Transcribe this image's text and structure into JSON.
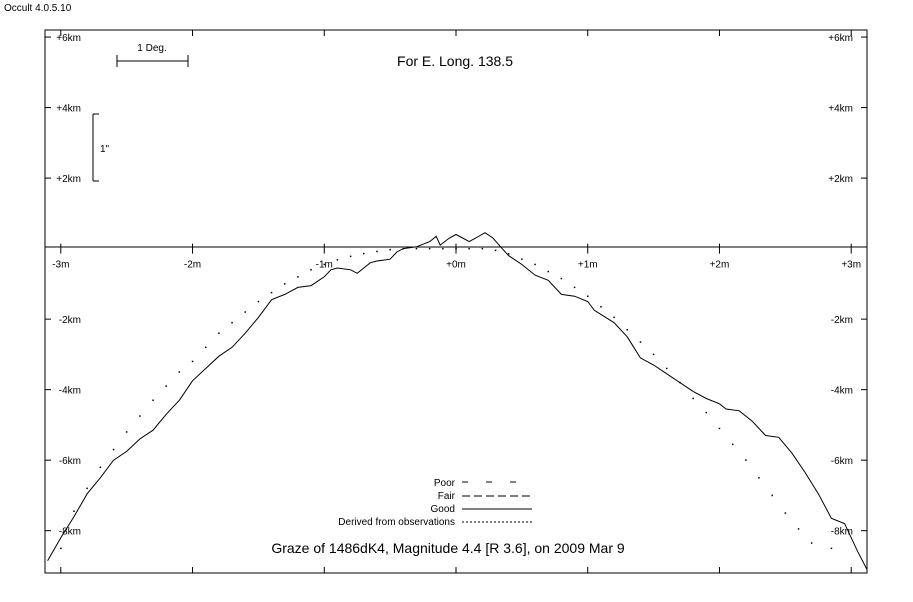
{
  "app_version": "Occult 4.0.5.10",
  "chart_data": {
    "type": "line",
    "title": "For E. Long. 138.5",
    "subtitle": "Graze of  1486dK4,  Magnitude 4.4 [R 3.6],  on 2009 Mar  9",
    "xlim": [
      -3.12,
      3.12
    ],
    "ylim": [
      -9.2,
      6.2
    ],
    "x_ticks": [
      {
        "value": -3,
        "label": "-3m"
      },
      {
        "value": -2,
        "label": "-2m"
      },
      {
        "value": -1,
        "label": "-1m"
      },
      {
        "value": 0,
        "label": "+0m"
      },
      {
        "value": 1,
        "label": "+1m"
      },
      {
        "value": 2,
        "label": "+2m"
      },
      {
        "value": 3,
        "label": "+3m"
      }
    ],
    "y_ticks": [
      {
        "value": 6,
        "label": "+6km"
      },
      {
        "value": 4,
        "label": "+4km"
      },
      {
        "value": 2,
        "label": "+2km"
      },
      {
        "value": -2,
        "label": "-2km"
      },
      {
        "value": -4,
        "label": "-4km"
      },
      {
        "value": -6,
        "label": "-6km"
      },
      {
        "value": -8,
        "label": "-8km"
      }
    ],
    "scale_bars": {
      "degree_label": "1 Deg.",
      "arcsec_label": "1\""
    },
    "legend": {
      "placement": "bottom-center",
      "entries": [
        {
          "label": "Poor",
          "style": "dash-sparse"
        },
        {
          "label": "Fair",
          "style": "dashed"
        },
        {
          "label": "Good",
          "style": "solid"
        },
        {
          "label": "Derived from observations",
          "style": "dotted"
        }
      ]
    },
    "series": [
      {
        "label": "Good",
        "style": "solid",
        "points": [
          [
            -3.1,
            -8.85
          ],
          [
            -3.0,
            -8.2
          ],
          [
            -2.9,
            -7.6
          ],
          [
            -2.8,
            -6.95
          ],
          [
            -2.7,
            -6.5
          ],
          [
            -2.6,
            -6.0
          ],
          [
            -2.5,
            -5.75
          ],
          [
            -2.4,
            -5.4
          ],
          [
            -2.3,
            -5.15
          ],
          [
            -2.2,
            -4.7
          ],
          [
            -2.1,
            -4.3
          ],
          [
            -2.0,
            -3.75
          ],
          [
            -1.9,
            -3.4
          ],
          [
            -1.8,
            -3.05
          ],
          [
            -1.7,
            -2.8
          ],
          [
            -1.6,
            -2.4
          ],
          [
            -1.5,
            -1.95
          ],
          [
            -1.4,
            -1.45
          ],
          [
            -1.3,
            -1.3
          ],
          [
            -1.2,
            -1.1
          ],
          [
            -1.1,
            -1.05
          ],
          [
            -1.0,
            -0.8
          ],
          [
            -0.95,
            -0.6
          ],
          [
            -0.9,
            -0.55
          ],
          [
            -0.8,
            -0.6
          ],
          [
            -0.75,
            -0.7
          ],
          [
            -0.7,
            -0.55
          ],
          [
            -0.65,
            -0.4
          ],
          [
            -0.6,
            -0.35
          ],
          [
            -0.5,
            -0.3
          ],
          [
            -0.45,
            -0.1
          ],
          [
            -0.4,
            0.0
          ],
          [
            -0.3,
            0.05
          ],
          [
            -0.2,
            0.2
          ],
          [
            -0.15,
            0.35
          ],
          [
            -0.12,
            0.1
          ],
          [
            -0.05,
            0.3
          ],
          [
            0.0,
            0.4
          ],
          [
            0.05,
            0.3
          ],
          [
            0.1,
            0.2
          ],
          [
            0.15,
            0.3
          ],
          [
            0.22,
            0.45
          ],
          [
            0.28,
            0.3
          ],
          [
            0.35,
            0.0
          ],
          [
            0.4,
            -0.2
          ],
          [
            0.5,
            -0.45
          ],
          [
            0.6,
            -0.75
          ],
          [
            0.7,
            -0.9
          ],
          [
            0.75,
            -1.1
          ],
          [
            0.8,
            -1.3
          ],
          [
            0.9,
            -1.35
          ],
          [
            1.0,
            -1.5
          ],
          [
            1.05,
            -1.75
          ],
          [
            1.2,
            -2.1
          ],
          [
            1.3,
            -2.5
          ],
          [
            1.35,
            -2.8
          ],
          [
            1.4,
            -3.1
          ],
          [
            1.5,
            -3.3
          ],
          [
            1.6,
            -3.55
          ],
          [
            1.7,
            -3.8
          ],
          [
            1.8,
            -4.05
          ],
          [
            1.9,
            -4.25
          ],
          [
            2.0,
            -4.4
          ],
          [
            2.05,
            -4.55
          ],
          [
            2.15,
            -4.6
          ],
          [
            2.25,
            -4.9
          ],
          [
            2.35,
            -5.3
          ],
          [
            2.45,
            -5.35
          ],
          [
            2.55,
            -5.8
          ],
          [
            2.65,
            -6.35
          ],
          [
            2.75,
            -6.95
          ],
          [
            2.85,
            -7.65
          ],
          [
            2.95,
            -7.8
          ],
          [
            3.05,
            -8.6
          ],
          [
            3.12,
            -9.1
          ]
        ]
      },
      {
        "label": "Derived from observations",
        "style": "dotted",
        "points": [
          [
            -3.0,
            -8.5
          ],
          [
            -2.9,
            -7.45
          ],
          [
            -2.8,
            -6.8
          ],
          [
            -2.7,
            -6.2
          ],
          [
            -2.6,
            -5.7
          ],
          [
            -2.5,
            -5.2
          ],
          [
            -2.4,
            -4.75
          ],
          [
            -2.3,
            -4.3
          ],
          [
            -2.2,
            -3.9
          ],
          [
            -2.1,
            -3.5
          ],
          [
            -2.0,
            -3.2
          ],
          [
            -1.9,
            -2.8
          ],
          [
            -1.8,
            -2.4
          ],
          [
            -1.7,
            -2.1
          ],
          [
            -1.6,
            -1.8
          ],
          [
            -1.5,
            -1.5
          ],
          [
            -1.4,
            -1.25
          ],
          [
            -1.3,
            -1.0
          ],
          [
            -1.2,
            -0.8
          ],
          [
            -1.1,
            -0.6
          ],
          [
            -1.0,
            -0.45
          ],
          [
            -0.9,
            -0.32
          ],
          [
            -0.8,
            -0.22
          ],
          [
            -0.7,
            -0.14
          ],
          [
            -0.6,
            -0.08
          ],
          [
            -0.5,
            -0.03
          ],
          [
            -0.4,
            0.0
          ],
          [
            -0.3,
            0.0
          ],
          [
            -0.2,
            0.0
          ],
          [
            -0.1,
            0.0
          ],
          [
            0.0,
            0.0
          ],
          [
            0.1,
            0.0
          ],
          [
            0.2,
            0.0
          ],
          [
            0.3,
            -0.05
          ],
          [
            0.4,
            -0.15
          ],
          [
            0.5,
            -0.3
          ],
          [
            0.6,
            -0.45
          ],
          [
            0.7,
            -0.65
          ],
          [
            0.8,
            -0.85
          ],
          [
            0.9,
            -1.1
          ],
          [
            1.0,
            -1.35
          ],
          [
            1.1,
            -1.65
          ],
          [
            1.2,
            -1.95
          ],
          [
            1.3,
            -2.3
          ],
          [
            1.4,
            -2.65
          ],
          [
            1.5,
            -3.0
          ],
          [
            1.6,
            -3.4
          ],
          [
            1.7,
            -3.8
          ],
          [
            1.8,
            -4.25
          ],
          [
            1.9,
            -4.65
          ],
          [
            2.0,
            -5.1
          ],
          [
            2.1,
            -5.55
          ],
          [
            2.2,
            -6.0
          ],
          [
            2.3,
            -6.5
          ],
          [
            2.4,
            -7.0
          ],
          [
            2.5,
            -7.5
          ],
          [
            2.6,
            -7.95
          ],
          [
            2.7,
            -8.35
          ],
          [
            2.85,
            -8.5
          ]
        ]
      }
    ]
  }
}
